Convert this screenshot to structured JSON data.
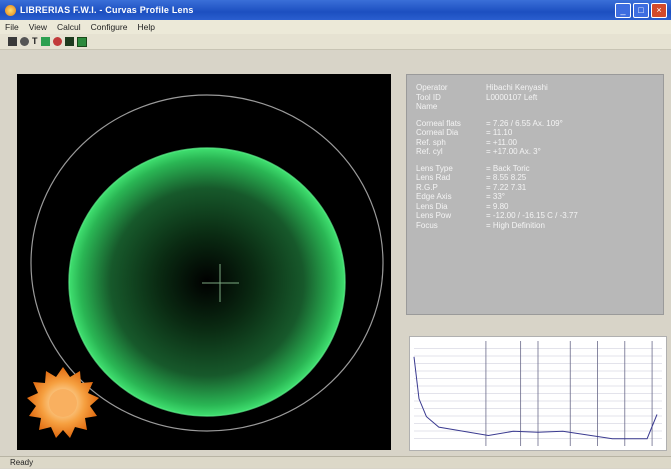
{
  "window": {
    "title": "LIBRERIAS F.W.I. - Curvas Profile Lens"
  },
  "menu": [
    "File",
    "View",
    "Calcul",
    "Configure",
    "Help"
  ],
  "info": {
    "rows_a": [
      {
        "label": "Operator",
        "value": "Hibachi Kenyashi"
      },
      {
        "label": "Tool ID",
        "value": "L0000107 Left"
      },
      {
        "label": "Name",
        "value": ""
      }
    ],
    "rows_b": [
      {
        "label": "Corneal flats",
        "value": "= 7.26 / 6.55 Ax. 109°"
      },
      {
        "label": "Corneal Dia",
        "value": "= 11.10"
      },
      {
        "label": "Ref. sph",
        "value": "= +11.00"
      },
      {
        "label": "Ref. cyl",
        "value": "= +17.00 Ax. 3°"
      }
    ],
    "rows_c": [
      {
        "label": "Lens Type",
        "value": "= Back Toric"
      },
      {
        "label": "Lens Rad",
        "value": "= 8.55 8.25"
      },
      {
        "label": "R.G.P",
        "value": "= 7.22 7.31"
      },
      {
        "label": "Edge Axis",
        "value": "= 33°"
      },
      {
        "label": "Lens Dia",
        "value": "= 9.80"
      },
      {
        "label": "Lens Pow",
        "value": "= -12.00 / -16.15 C / -3.77"
      },
      {
        "label": "Focus",
        "value": "= High Definition"
      }
    ]
  },
  "status": {
    "text": "Ready"
  },
  "colors": {
    "lens_green": "#2fd35f",
    "background": "#000000",
    "logo_orange": "#f07a1c"
  },
  "profile_chart": {
    "grid_lines_x": [
      0.29,
      0.43,
      0.5,
      0.63,
      0.74,
      0.85,
      0.96
    ],
    "points": [
      [
        0,
        0.15
      ],
      [
        0.02,
        0.55
      ],
      [
        0.05,
        0.72
      ],
      [
        0.1,
        0.82
      ],
      [
        0.3,
        0.9
      ],
      [
        0.4,
        0.86
      ],
      [
        0.5,
        0.87
      ],
      [
        0.6,
        0.86
      ],
      [
        0.8,
        0.93
      ],
      [
        0.94,
        0.93
      ],
      [
        0.98,
        0.7
      ]
    ]
  }
}
